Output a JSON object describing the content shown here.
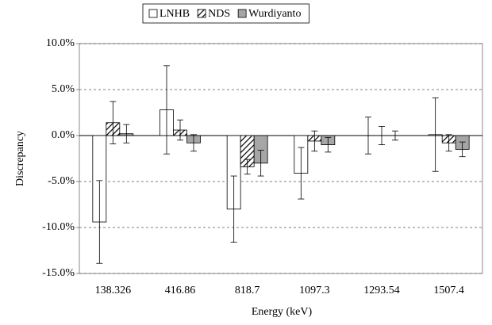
{
  "chart_data": {
    "type": "bar",
    "categories": [
      "138.326",
      "416.86",
      "818.7",
      "1097.3",
      "1293.54",
      "1507.4"
    ],
    "series": [
      {
        "name": "LNHB",
        "color": "#ffffff",
        "values": [
          -9.4,
          2.8,
          -8.0,
          -4.1,
          0,
          0.1
        ],
        "errors": [
          4.5,
          4.8,
          3.6,
          2.8,
          2.0,
          4.0
        ]
      },
      {
        "name": "NDS",
        "color": "#000000",
        "pattern": "hatch",
        "values": [
          1.4,
          0.6,
          -3.4,
          -0.6,
          0,
          -0.8
        ],
        "errors": [
          2.3,
          1.1,
          0.8,
          1.1,
          1.0,
          0.9
        ]
      },
      {
        "name": "Wurdiyanto",
        "color": "#a6a6a6",
        "values": [
          0.2,
          -0.8,
          -3.0,
          -1.0,
          0,
          -1.5
        ],
        "errors": [
          1.0,
          0.9,
          1.4,
          0.8,
          0.5,
          0.8
        ]
      }
    ],
    "xlabel": "Energy (keV)",
    "ylabel": "Discrepancy",
    "ylim": [
      -15,
      10
    ],
    "yticks": [
      {
        "value": -15,
        "label": "-15.0%"
      },
      {
        "value": -10,
        "label": "-10.0%"
      },
      {
        "value": -5,
        "label": "-5.0%"
      },
      {
        "value": 0,
        "label": "0.0%"
      },
      {
        "value": 5,
        "label": "5.0%"
      },
      {
        "value": 10,
        "label": "10.0%"
      }
    ],
    "grid": true,
    "legend": "top"
  }
}
